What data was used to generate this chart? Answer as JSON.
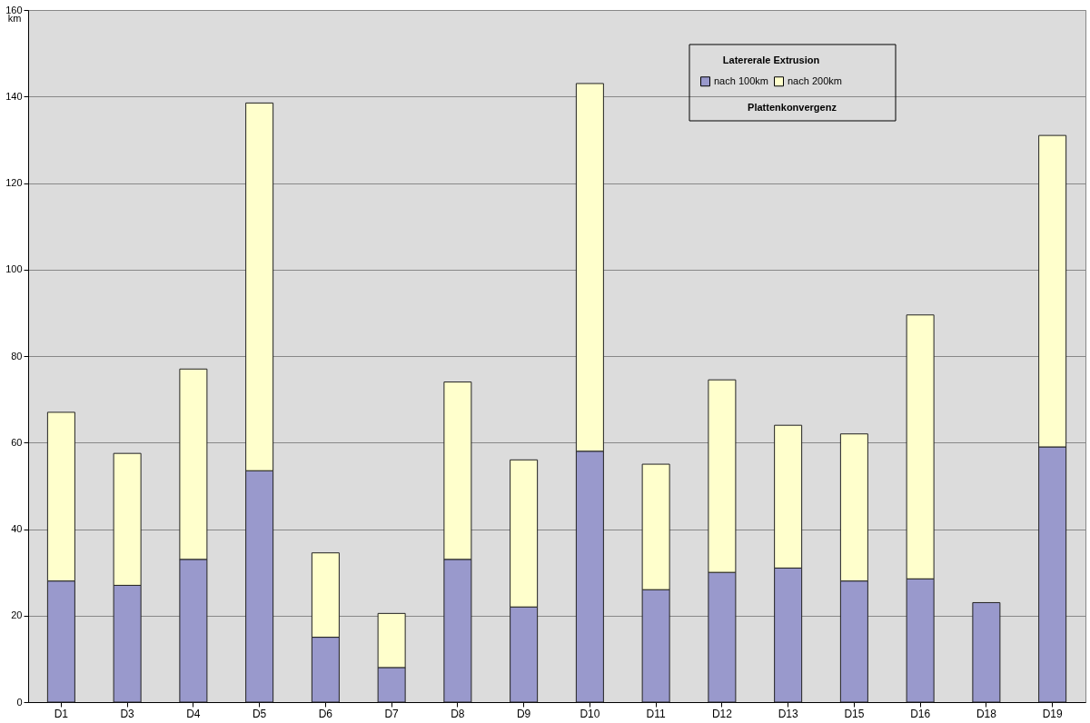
{
  "chart_data": {
    "type": "bar",
    "stacked": true,
    "ylabel": "km",
    "legend_title": "Latererale Extrusion",
    "legend": "top right",
    "grid": "y",
    "categories": [
      "D1",
      "D3",
      "D4",
      "D5",
      "D6",
      "D7",
      "D8",
      "D9",
      "D10",
      "D11",
      "D12",
      "D13",
      "D15",
      "D16",
      "D18",
      "D19"
    ],
    "series": [
      {
        "name": "nach 100km",
        "color": "#9999cc",
        "values": [
          28,
          27,
          33,
          53.5,
          15,
          8,
          33,
          22,
          58,
          26,
          30,
          31,
          28,
          28.5,
          23,
          59
        ]
      },
      {
        "name": "nach 200km",
        "color": "#ffffcc",
        "values": [
          39,
          30.5,
          44,
          85,
          19.5,
          12.5,
          41,
          34,
          85,
          29,
          44.5,
          33,
          34,
          61,
          null,
          72
        ]
      }
    ],
    "ylim": [
      0,
      160
    ],
    "yticks": [
      0,
      20,
      40,
      60,
      80,
      100,
      120,
      140,
      160
    ],
    "annotations": [
      "Plattenkonvergenz"
    ]
  }
}
